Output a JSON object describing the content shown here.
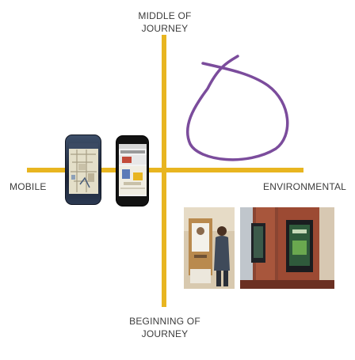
{
  "axes": {
    "top_label": "MIDDLE OF\nJOURNEY",
    "bottom_label": "BEGINNING OF\nJOURNEY",
    "left_label": "MOBILE",
    "right_label": "ENVIRONMENTAL",
    "color": "#e8b520"
  },
  "annotation": {
    "color": "#7b4c9c"
  }
}
